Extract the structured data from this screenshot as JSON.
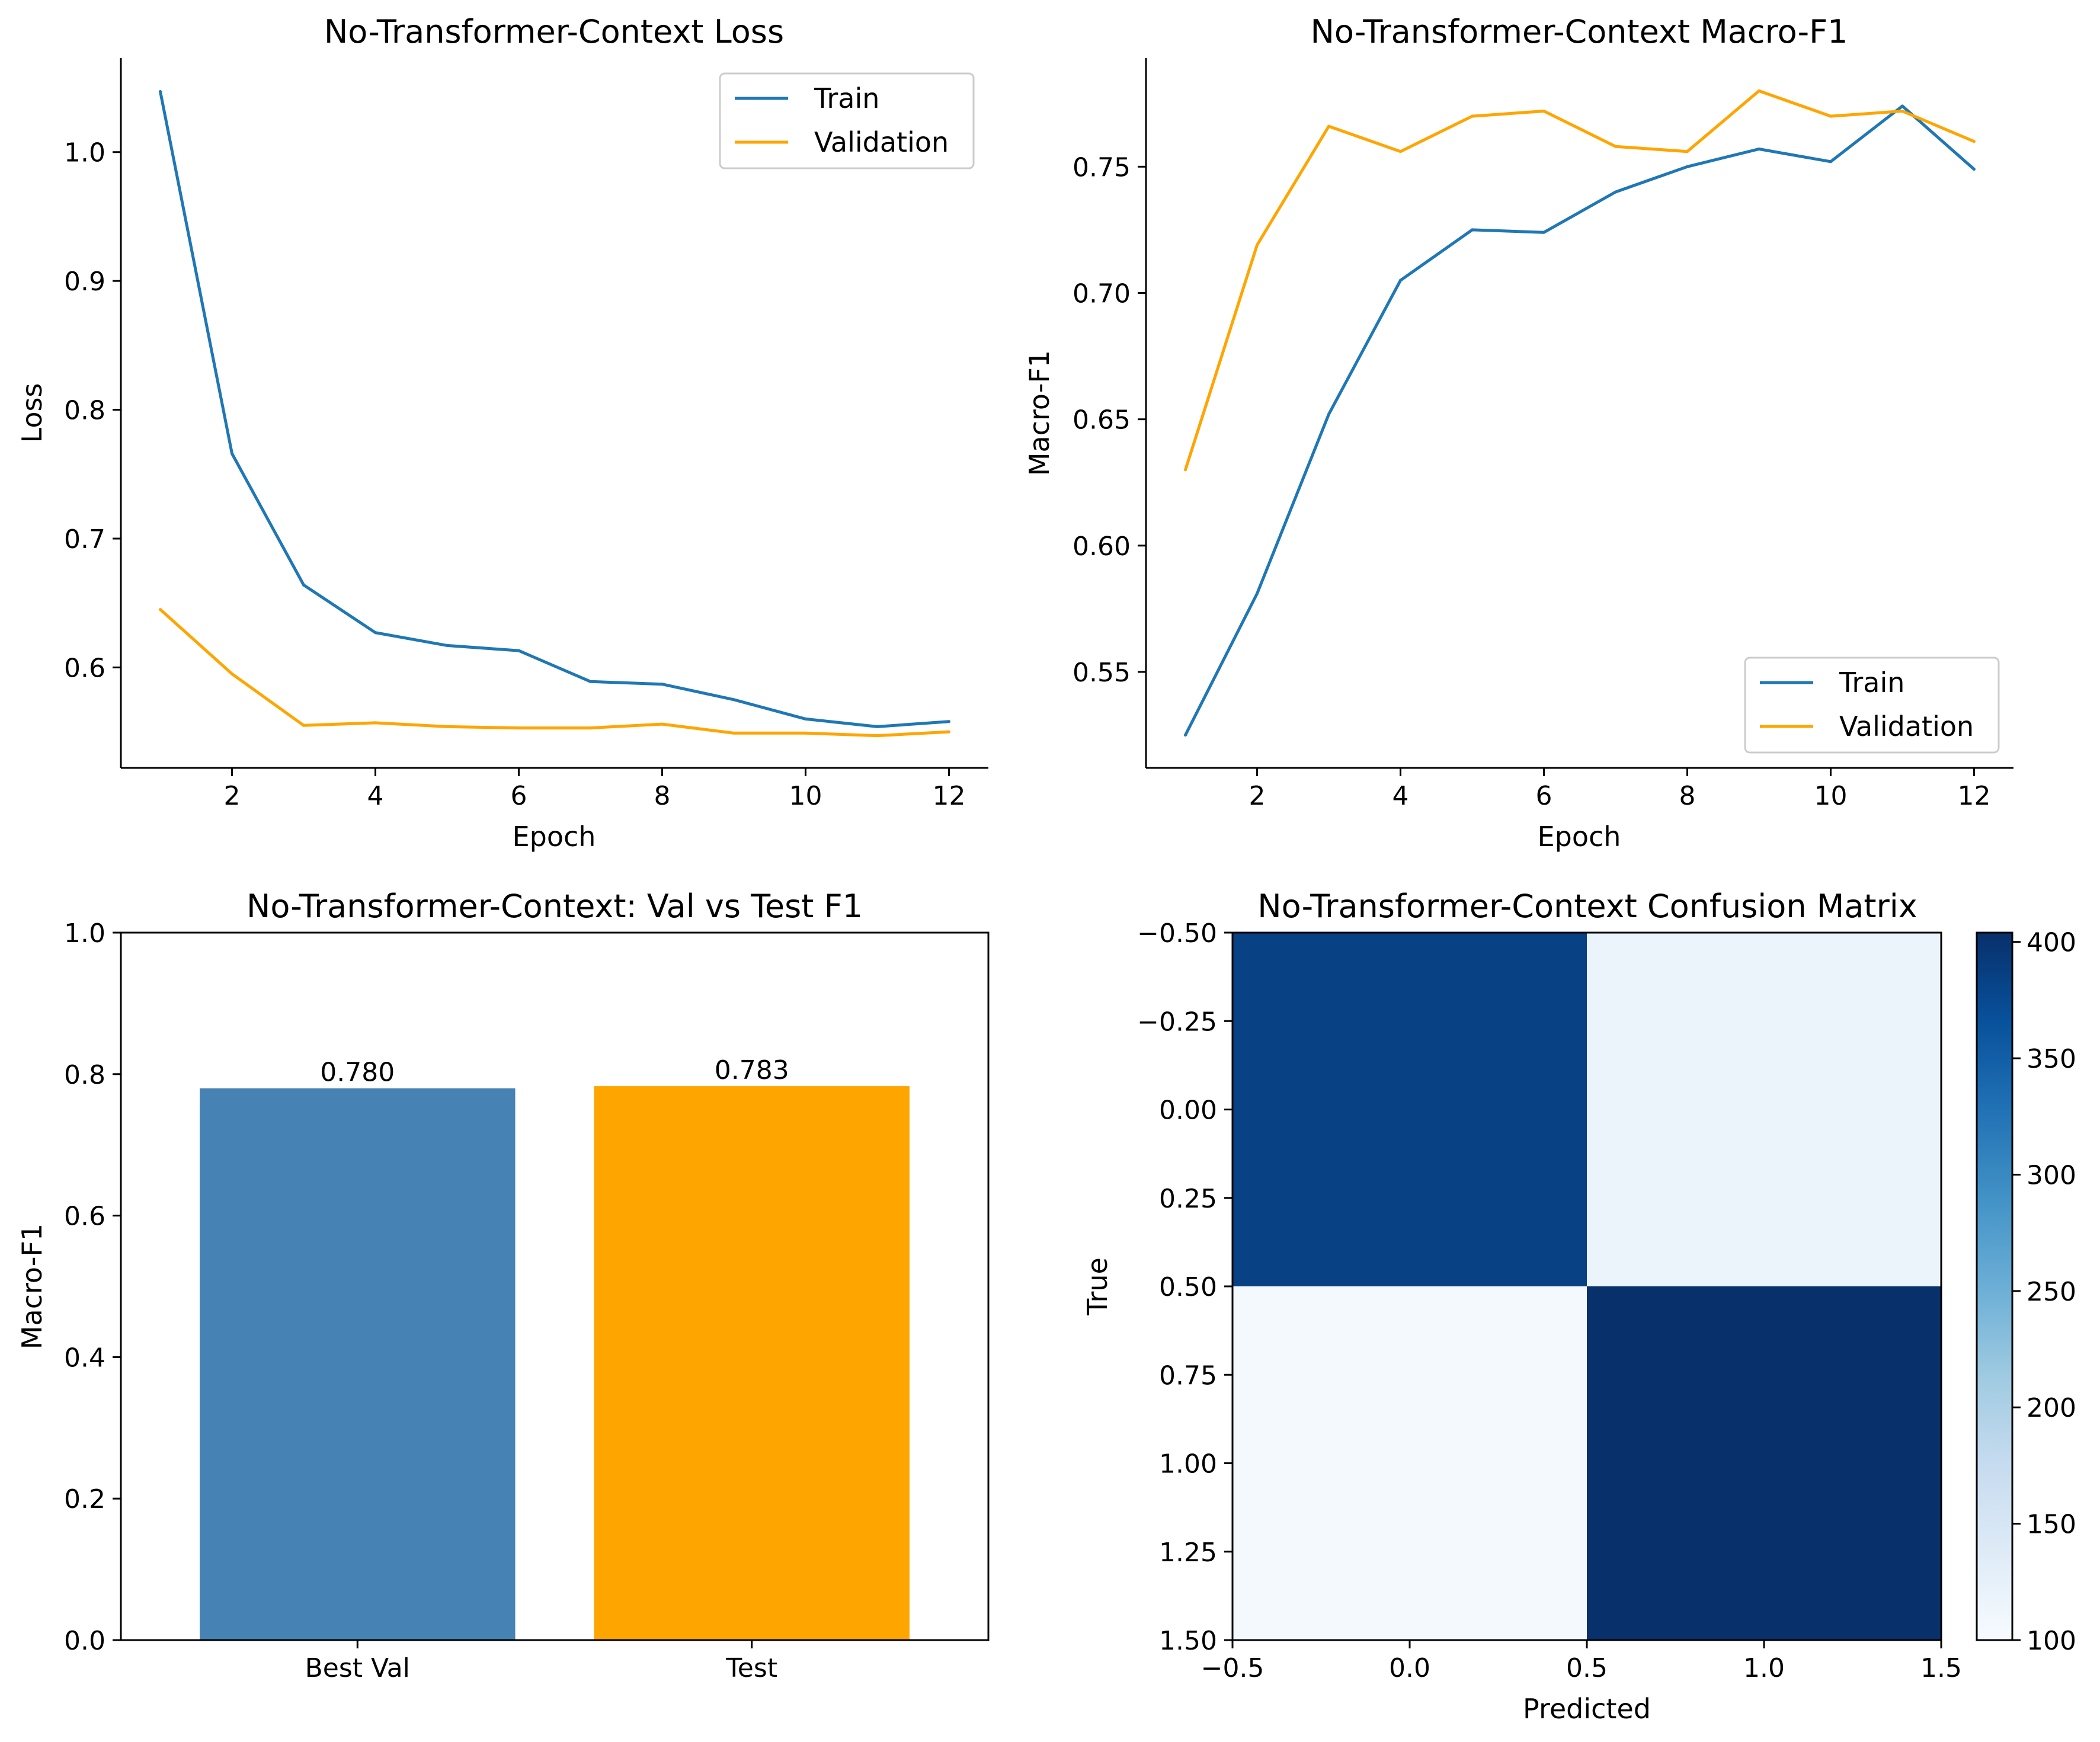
{
  "chart_data": [
    {
      "type": "line",
      "title": "No-Transformer-Context Loss",
      "xlabel": "Epoch",
      "ylabel": "Loss",
      "xlim": [
        0.45,
        12.55
      ],
      "ylim": [
        0.522,
        1.073
      ],
      "xticks": [
        2,
        4,
        6,
        8,
        10,
        12
      ],
      "yticks": [
        0.6,
        0.7,
        0.8,
        0.9,
        1.0
      ],
      "ytick_labels": [
        "0.6",
        "0.7",
        "0.8",
        "0.9",
        "1.0"
      ],
      "legend_position": "upper right",
      "x": [
        1,
        2,
        3,
        4,
        5,
        6,
        7,
        8,
        9,
        10,
        11,
        12
      ],
      "series": [
        {
          "name": "Train",
          "color": "#1f77b4",
          "values": [
            1.047,
            0.766,
            0.664,
            0.627,
            0.617,
            0.613,
            0.589,
            0.587,
            0.575,
            0.56,
            0.554,
            0.558
          ]
        },
        {
          "name": "Validation",
          "color": "#ffa500",
          "values": [
            0.645,
            0.595,
            0.555,
            0.557,
            0.554,
            0.553,
            0.553,
            0.556,
            0.549,
            0.549,
            0.547,
            0.55
          ]
        }
      ]
    },
    {
      "type": "line",
      "title": "No-Transformer-Context Macro-F1",
      "xlabel": "Epoch",
      "ylabel": "Macro-F1",
      "xlim": [
        0.45,
        12.55
      ],
      "ylim": [
        0.512,
        0.793
      ],
      "xticks": [
        2,
        4,
        6,
        8,
        10,
        12
      ],
      "yticks": [
        0.55,
        0.6,
        0.65,
        0.7,
        0.75
      ],
      "ytick_labels": [
        "0.55",
        "0.60",
        "0.65",
        "0.70",
        "0.75"
      ],
      "legend_position": "lower right",
      "x": [
        1,
        2,
        3,
        4,
        5,
        6,
        7,
        8,
        9,
        10,
        11,
        12
      ],
      "series": [
        {
          "name": "Train",
          "color": "#1f77b4",
          "values": [
            0.525,
            0.581,
            0.652,
            0.705,
            0.725,
            0.724,
            0.74,
            0.75,
            0.757,
            0.752,
            0.774,
            0.749
          ]
        },
        {
          "name": "Validation",
          "color": "#ffa500",
          "values": [
            0.63,
            0.719,
            0.766,
            0.756,
            0.77,
            0.772,
            0.758,
            0.756,
            0.78,
            0.77,
            0.772,
            0.76
          ]
        }
      ]
    },
    {
      "type": "bar",
      "title": "No-Transformer-Context: Val vs Test F1",
      "xlabel": "",
      "ylabel": "Macro-F1",
      "ylim": [
        0,
        1
      ],
      "yticks": [
        0,
        0.2,
        0.4,
        0.6,
        0.8,
        1.0
      ],
      "ytick_labels": [
        "0.0",
        "0.2",
        "0.4",
        "0.6",
        "0.8",
        "1.0"
      ],
      "categories": [
        "Best Val",
        "Test"
      ],
      "values": [
        0.78,
        0.783
      ],
      "value_labels": [
        "0.780",
        "0.783"
      ],
      "colors": [
        "#4682b4",
        "#ffa500"
      ]
    },
    {
      "type": "heatmap",
      "title": "No-Transformer-Context Confusion Matrix",
      "xlabel": "Predicted",
      "ylabel": "True",
      "xlim": [
        -0.5,
        1.5
      ],
      "ylim": [
        -0.5,
        1.5
      ],
      "xticks": [
        -0.5,
        0,
        0.5,
        1,
        1.5
      ],
      "xtick_labels": [
        "−0.5",
        "0.0",
        "0.5",
        "1.0",
        "1.5"
      ],
      "yticks": [
        -0.5,
        -0.25,
        0,
        0.25,
        0.5,
        0.75,
        1,
        1.25,
        1.5
      ],
      "ytick_labels": [
        "−0.50",
        "−0.25",
        "0.00",
        "0.25",
        "0.50",
        "0.75",
        "1.00",
        "1.25",
        "1.50"
      ],
      "matrix": [
        [
          385,
          117
        ],
        [
          104,
          404
        ]
      ],
      "colormap": "Blues",
      "colorbar": {
        "min": 100,
        "max": 404,
        "ticks": [
          100,
          150,
          200,
          250,
          300,
          350,
          400
        ],
        "tick_labels": [
          "100",
          "150",
          "200",
          "250",
          "300",
          "350",
          "400"
        ]
      }
    }
  ]
}
